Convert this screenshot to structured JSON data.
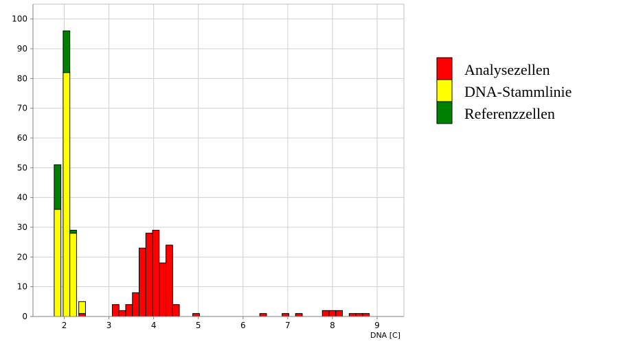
{
  "chart_data": {
    "type": "bar",
    "stacked": true,
    "xlabel": "DNA [C]",
    "ylabel": "",
    "xlim": [
      1.3,
      9.6
    ],
    "ylim": [
      0,
      105
    ],
    "x_ticks": [
      2,
      3,
      4,
      5,
      6,
      7,
      8,
      9
    ],
    "y_ticks": [
      0,
      10,
      20,
      30,
      40,
      50,
      60,
      70,
      80,
      90,
      100
    ],
    "bin_width": 0.15,
    "grid": true,
    "legend_position": "right",
    "series": [
      {
        "name": "Analysezellen",
        "color": "#ff0000",
        "points": [
          {
            "x": 2.4,
            "y": 1
          },
          {
            "x": 3.15,
            "y": 4
          },
          {
            "x": 3.3,
            "y": 2
          },
          {
            "x": 3.45,
            "y": 4
          },
          {
            "x": 3.6,
            "y": 8
          },
          {
            "x": 3.75,
            "y": 23
          },
          {
            "x": 3.9,
            "y": 28
          },
          {
            "x": 4.05,
            "y": 29
          },
          {
            "x": 4.2,
            "y": 18
          },
          {
            "x": 4.35,
            "y": 24
          },
          {
            "x": 4.5,
            "y": 4
          },
          {
            "x": 4.95,
            "y": 1
          },
          {
            "x": 6.45,
            "y": 1
          },
          {
            "x": 6.95,
            "y": 1
          },
          {
            "x": 7.25,
            "y": 1
          },
          {
            "x": 7.85,
            "y": 2
          },
          {
            "x": 8.0,
            "y": 2
          },
          {
            "x": 8.15,
            "y": 2
          },
          {
            "x": 8.45,
            "y": 1
          },
          {
            "x": 8.6,
            "y": 1
          },
          {
            "x": 8.75,
            "y": 1
          }
        ]
      },
      {
        "name": "DNA-Stammlinie",
        "color": "#ffff00",
        "points": [
          {
            "x": 1.85,
            "y": 36
          },
          {
            "x": 2.05,
            "y": 82
          },
          {
            "x": 2.2,
            "y": 28
          },
          {
            "x": 2.4,
            "y": 4
          }
        ]
      },
      {
        "name": "Referenzzellen",
        "color": "#008000",
        "points": [
          {
            "x": 1.85,
            "y": 15
          },
          {
            "x": 2.05,
            "y": 14
          },
          {
            "x": 2.2,
            "y": 1
          }
        ]
      }
    ]
  }
}
